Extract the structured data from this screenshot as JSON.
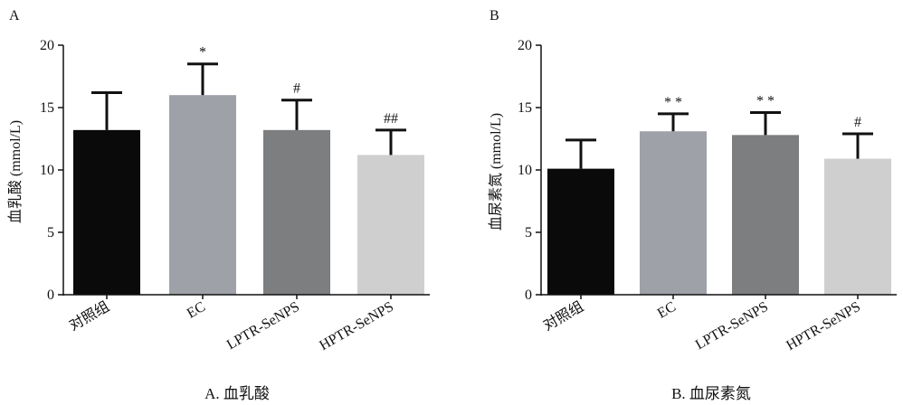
{
  "chart_data": [
    {
      "type": "bar",
      "panel_label": "A",
      "ylabel": "血乳酸 (mmol/L)",
      "caption": "A. 血乳酸",
      "ylim": [
        0,
        20
      ],
      "yticks": [
        0,
        5,
        10,
        15,
        20
      ],
      "categories": [
        "对照组",
        "EC",
        "LPTR-SeNPS",
        "HPTR-SeNPS"
      ],
      "values": [
        13.2,
        16.0,
        13.2,
        11.2
      ],
      "errors": [
        3.0,
        2.5,
        2.4,
        2.0
      ],
      "significance": [
        "",
        "*",
        "#",
        "##"
      ],
      "bar_colors": [
        "#0a0a0a",
        "#9ea2a8",
        "#7d7e80",
        "#cfcfcf"
      ],
      "grid": false
    },
    {
      "type": "bar",
      "panel_label": "B",
      "ylabel": "血尿素氮 (mmol/L)",
      "caption": "B. 血尿素氮",
      "ylim": [
        0,
        20
      ],
      "yticks": [
        0,
        5,
        10,
        15,
        20
      ],
      "categories": [
        "对照组",
        "EC",
        "LPTR-SeNPS",
        "HPTR-SeNPS"
      ],
      "values": [
        10.1,
        13.1,
        12.8,
        10.9
      ],
      "errors": [
        2.3,
        1.4,
        1.8,
        2.0
      ],
      "significance": [
        "",
        "* *",
        "* *",
        "#"
      ],
      "bar_colors": [
        "#0a0a0a",
        "#9ea2a8",
        "#7d7e80",
        "#cfcfcf"
      ],
      "grid": false
    }
  ]
}
